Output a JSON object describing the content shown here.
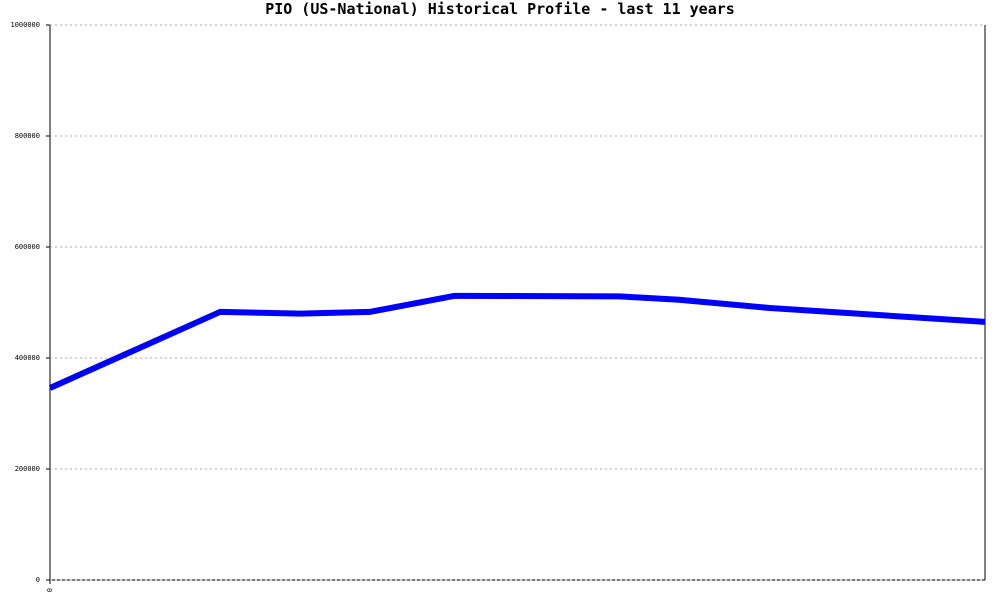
{
  "chart_data": {
    "type": "line",
    "title": "PIO (US-National) Historical Profile - last 11 years",
    "x": [
      0,
      2.0,
      2.94,
      3.76,
      4.76,
      6.7,
      7.4,
      8.47,
      11
    ],
    "series": [
      {
        "color": "#0000ff",
        "values": [
          346000,
          483000,
          480000,
          483000,
          512000,
          511000,
          505000,
          490000,
          465000
        ]
      }
    ],
    "xlim": [
      0,
      11
    ],
    "xticks": [
      0
    ],
    "ylim": [
      0,
      1000000
    ],
    "yticks": [
      0,
      200000,
      400000,
      600000,
      800000,
      1000000
    ],
    "grid": true
  }
}
